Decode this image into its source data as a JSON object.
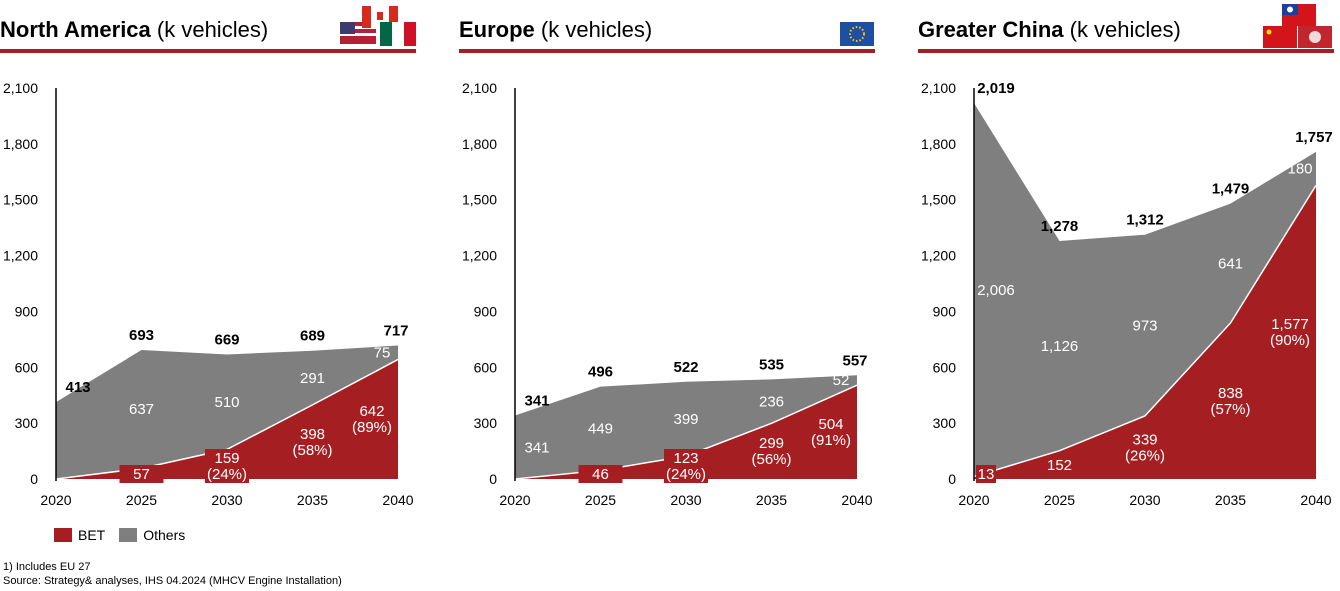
{
  "colors": {
    "bet": "#a51e22",
    "others": "#7f7f7f"
  },
  "legend": {
    "bet": "BET",
    "others": "Others"
  },
  "footnotes": [
    "1) Includes EU 27",
    "Source: Strategy& analyses, IHS 04.2024 (MHCV Engine Installation)"
  ],
  "chart_data": [
    {
      "type": "area",
      "title_bold": "North America",
      "title_rest": " (k vehicles)",
      "flags": [
        "USA",
        "Canada",
        "Mexico"
      ],
      "categories": [
        "2020",
        "2025",
        "2030",
        "2035",
        "2040"
      ],
      "yticks": [
        "0",
        "300",
        "600",
        "900",
        "1,200",
        "1,500",
        "1,800",
        "2,100"
      ],
      "ylim": [
        0,
        2100
      ],
      "totals": [
        413,
        693,
        669,
        689,
        717
      ],
      "total_labels": [
        "413",
        "693",
        "669",
        "689",
        "717"
      ],
      "bet": [
        0,
        57,
        159,
        398,
        642
      ],
      "bet_labels": [
        "",
        "57",
        "159\n(24%)",
        "398\n(58%)",
        "642\n(89%)"
      ],
      "others": [
        413,
        637,
        510,
        291,
        75
      ],
      "others_labels": [
        "",
        "637",
        "510",
        "291",
        "75"
      ]
    },
    {
      "type": "area",
      "title_bold": "Europe",
      "title_rest": " (k vehicles)",
      "flags": [
        "EU"
      ],
      "categories": [
        "2020",
        "2025",
        "2030",
        "2035",
        "2040"
      ],
      "yticks": [
        "0",
        "300",
        "600",
        "900",
        "1,200",
        "1,500",
        "1,800",
        "2,100"
      ],
      "ylim": [
        0,
        2100
      ],
      "totals": [
        341,
        496,
        522,
        535,
        557
      ],
      "total_labels": [
        "341",
        "496",
        "522",
        "535",
        "557"
      ],
      "bet": [
        0,
        46,
        123,
        299,
        504
      ],
      "bet_labels": [
        "",
        "46",
        "123\n(24%)",
        "299\n(56%)",
        "504\n(91%)"
      ],
      "others": [
        341,
        449,
        399,
        236,
        52
      ],
      "others_labels": [
        "341",
        "449",
        "399",
        "236",
        "52"
      ]
    },
    {
      "type": "area",
      "title_bold": "Greater China",
      "title_rest": " (k vehicles)",
      "flags": [
        "Taiwan",
        "China",
        "Hong Kong"
      ],
      "categories": [
        "2020",
        "2025",
        "2030",
        "2035",
        "2040"
      ],
      "yticks": [
        "0",
        "300",
        "600",
        "900",
        "1,200",
        "1,500",
        "1,800",
        "2,100"
      ],
      "ylim": [
        0,
        2100
      ],
      "totals": [
        2019,
        1278,
        1312,
        1479,
        1757
      ],
      "total_labels": [
        "2,019",
        "1,278",
        "1,312",
        "1,479",
        "1,757"
      ],
      "bet": [
        13,
        152,
        339,
        838,
        1577
      ],
      "bet_labels": [
        "13",
        "152",
        "339\n(26%)",
        "838\n(57%)",
        "1,577\n(90%)"
      ],
      "others": [
        2006,
        1126,
        973,
        641,
        180
      ],
      "others_labels": [
        "2,006",
        "1,126",
        "973",
        "641",
        "180"
      ]
    }
  ]
}
